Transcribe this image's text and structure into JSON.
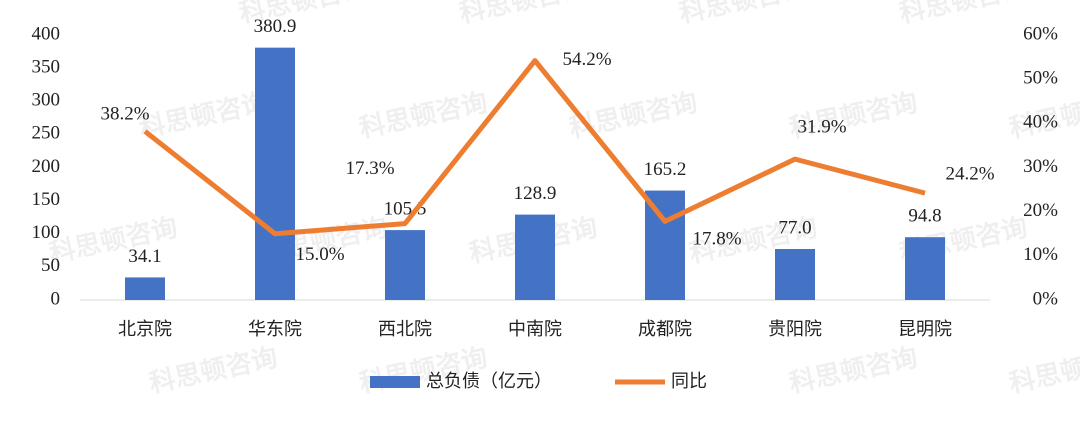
{
  "chart_data": {
    "type": "bar",
    "watermark": "科思顿咨询",
    "categories": [
      "北京院",
      "华东院",
      "西北院",
      "中南院",
      "成都院",
      "贵阳院",
      "昆明院"
    ],
    "series": [
      {
        "name": "总负债（亿元）",
        "type": "bar",
        "color": "#4472c4",
        "values": [
          34.1,
          380.9,
          105.5,
          128.9,
          165.2,
          77.0,
          94.8
        ],
        "value_labels": [
          "34.1",
          "380.9",
          "105.5",
          "128.9",
          "165.2",
          "77.0",
          "94.8"
        ]
      },
      {
        "name": "同比",
        "type": "line",
        "axis": "y2",
        "color": "#ed7d31",
        "values": [
          38.2,
          15.0,
          17.3,
          54.2,
          17.8,
          31.9,
          24.2
        ],
        "value_labels": [
          "38.2%",
          "15.0%",
          "17.3%",
          "54.2%",
          "17.8%",
          "31.9%",
          "24.2%"
        ]
      }
    ],
    "ylim": [
      0,
      400
    ],
    "yticks": [
      0,
      50,
      100,
      150,
      200,
      250,
      300,
      350,
      400
    ],
    "y2lim": [
      0,
      60
    ],
    "y2ticks": [
      {
        "value": 0,
        "label": "0%"
      },
      {
        "value": 10,
        "label": "10%"
      },
      {
        "value": 20,
        "label": "20%"
      },
      {
        "value": 30,
        "label": "30%"
      },
      {
        "value": 40,
        "label": "40%"
      },
      {
        "value": 50,
        "label": "50%"
      },
      {
        "value": 60,
        "label": "60%"
      }
    ],
    "grid": false,
    "legend": "bottom"
  }
}
